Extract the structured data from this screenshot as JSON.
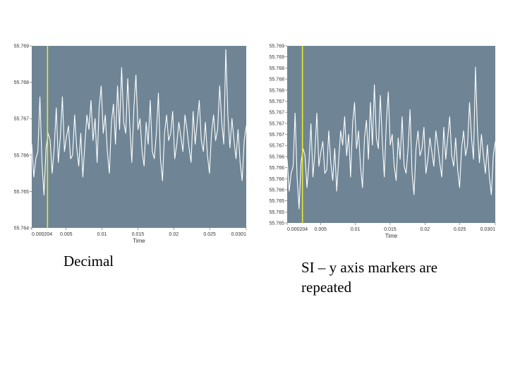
{
  "chart_data": [
    {
      "type": "line",
      "xlabel": "Time",
      "ylabel": "",
      "xlim": [
        0.000204,
        0.0301
      ],
      "ylim": [
        55.764,
        55.769
      ],
      "x_ticks": [
        "0.000204",
        "0.005",
        "0.01",
        "0.015",
        "0.02",
        "0.025",
        "0.0301"
      ],
      "y_ticks": [
        "55.769",
        "55.768",
        "55.767",
        "55.766",
        "55.765",
        "55.764"
      ],
      "cursor_x": 0.0024,
      "grid": false,
      "series": [
        {
          "values": [
            55.7663,
            55.7654,
            55.7659,
            55.7661,
            55.7676,
            55.7658,
            55.7649,
            55.7662,
            55.7666,
            55.7664,
            55.7655,
            55.7662,
            55.7673,
            55.7658,
            55.7665,
            55.7676,
            55.7661,
            55.7665,
            55.7668,
            55.7659,
            55.766,
            55.7671,
            55.7662,
            55.7657,
            55.7666,
            55.7654,
            55.7663,
            55.7671,
            55.7667,
            55.7675,
            55.7664,
            55.767,
            55.7658,
            55.7673,
            55.7679,
            55.7666,
            55.7671,
            55.7661,
            55.7655,
            55.7669,
            55.7674,
            55.7663,
            55.7679,
            55.7667,
            55.7684,
            55.7669,
            55.7666,
            55.7681,
            55.7668,
            55.7658,
            55.7673,
            55.7682,
            55.7667,
            55.767,
            55.7661,
            55.7657,
            55.7669,
            55.7663,
            55.7675,
            55.7661,
            55.7659,
            55.7666,
            55.7677,
            55.7659,
            55.7653,
            55.7666,
            55.7671,
            55.7664,
            55.7666,
            55.7672,
            55.7659,
            55.7663,
            55.7669,
            55.7665,
            55.7661,
            55.7671,
            55.7667,
            55.7662,
            55.7658,
            55.7672,
            55.7663,
            55.7669,
            55.7675,
            55.7664,
            55.7661,
            55.7669,
            55.766,
            55.7655,
            55.7666,
            55.7671,
            55.7664,
            55.7667,
            55.7679,
            55.7669,
            55.7663,
            55.7689,
            55.7671,
            55.7662,
            55.767,
            55.7664,
            55.7659,
            55.7667,
            55.7658,
            55.7653,
            55.7664,
            55.7668
          ]
        }
      ]
    },
    {
      "type": "line",
      "xlabel": "Time",
      "ylabel": "",
      "xlim": [
        0.000204,
        0.0301
      ],
      "ylim": [
        55.7645,
        55.7695
      ],
      "x_ticks": [
        "0.000204",
        "0.005",
        "0.01",
        "0.015",
        "0.02",
        "0.025",
        "0.0301"
      ],
      "y_ticks": [
        "55.769",
        "55.769",
        "55.768",
        "55.768",
        "55.768",
        "55.767",
        "55.767",
        "55.767",
        "55.767",
        "55.767",
        "55.766",
        "55.766",
        "55.766",
        "55.766",
        "55.765",
        "55.765",
        "55.765"
      ],
      "cursor_x": 0.0024,
      "grid": false,
      "series": [
        {
          "values": [
            55.7663,
            55.7654,
            55.7659,
            55.7661,
            55.7676,
            55.7658,
            55.7649,
            55.7662,
            55.7666,
            55.7664,
            55.7655,
            55.7662,
            55.7673,
            55.7658,
            55.7665,
            55.7676,
            55.7661,
            55.7665,
            55.7668,
            55.7659,
            55.766,
            55.7671,
            55.7662,
            55.7657,
            55.7666,
            55.7654,
            55.7663,
            55.7671,
            55.7667,
            55.7675,
            55.7664,
            55.767,
            55.7658,
            55.7673,
            55.7679,
            55.7666,
            55.7671,
            55.7661,
            55.7655,
            55.7669,
            55.7674,
            55.7663,
            55.7679,
            55.7667,
            55.7684,
            55.7669,
            55.7666,
            55.7681,
            55.7668,
            55.7658,
            55.7673,
            55.7682,
            55.7667,
            55.767,
            55.7661,
            55.7657,
            55.7669,
            55.7663,
            55.7675,
            55.7661,
            55.7659,
            55.7666,
            55.7677,
            55.7659,
            55.7653,
            55.7666,
            55.7671,
            55.7664,
            55.7666,
            55.7672,
            55.7659,
            55.7663,
            55.7669,
            55.7665,
            55.7661,
            55.7671,
            55.7667,
            55.7662,
            55.7658,
            55.7672,
            55.7663,
            55.7669,
            55.7675,
            55.7664,
            55.7661,
            55.7669,
            55.766,
            55.7655,
            55.7666,
            55.7671,
            55.7664,
            55.7667,
            55.7679,
            55.7669,
            55.7663,
            55.7689,
            55.7671,
            55.7662,
            55.767,
            55.7664,
            55.7659,
            55.7667,
            55.7658,
            55.7653,
            55.7664,
            55.7668
          ]
        }
      ]
    }
  ],
  "captions": {
    "left": "Decimal",
    "right_line1": "SI – y axis markers are",
    "right_line2": "repeated"
  },
  "colors": {
    "plot_background": "#6f8595",
    "trace": "#ffffff",
    "cursor": "#e8e82a",
    "tick_text": "#333333"
  }
}
